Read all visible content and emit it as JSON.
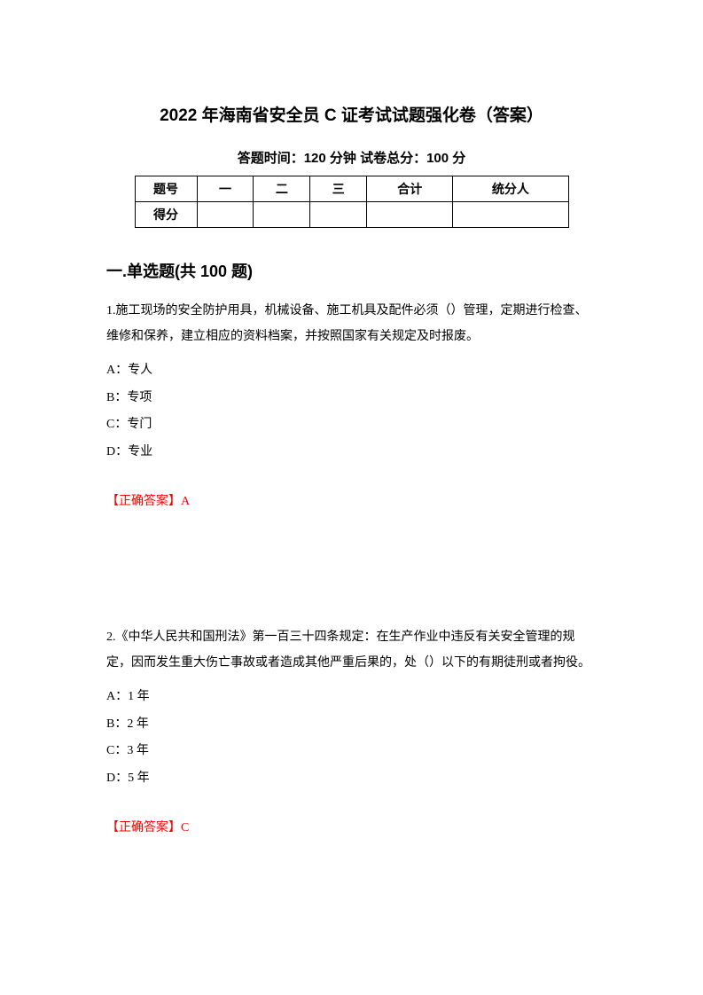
{
  "title": "2022 年海南省安全员 C 证考试试题强化卷（答案）",
  "subtitle": "答题时间：120 分钟    试卷总分：100 分",
  "table": {
    "headers": [
      "题号",
      "一",
      "二",
      "三",
      "合计",
      "统分人"
    ],
    "row_label": "得分"
  },
  "section": "一.单选题(共 100 题)",
  "q1": {
    "text": "1.施工现场的安全防护用具，机械设备、施工机具及配件必须（）管理，定期进行检查、维修和保养，建立相应的资料档案，并按照国家有关规定及时报废。",
    "opt_a": "A：专人",
    "opt_b": "B：专项",
    "opt_c": "C：专门",
    "opt_d": "D：专业",
    "answer": "【正确答案】A"
  },
  "q2": {
    "text": "2.《中华人民共和国刑法》第一百三十四条规定：在生产作业中违反有关安全管理的规定，因而发生重大伤亡事故或者造成其他严重后果的，处（）以下的有期徒刑或者拘役。",
    "opt_a": "A：1 年",
    "opt_b": "B：2 年",
    "opt_c": "C：3 年",
    "opt_d": "D：5 年",
    "answer": "【正确答案】C"
  }
}
